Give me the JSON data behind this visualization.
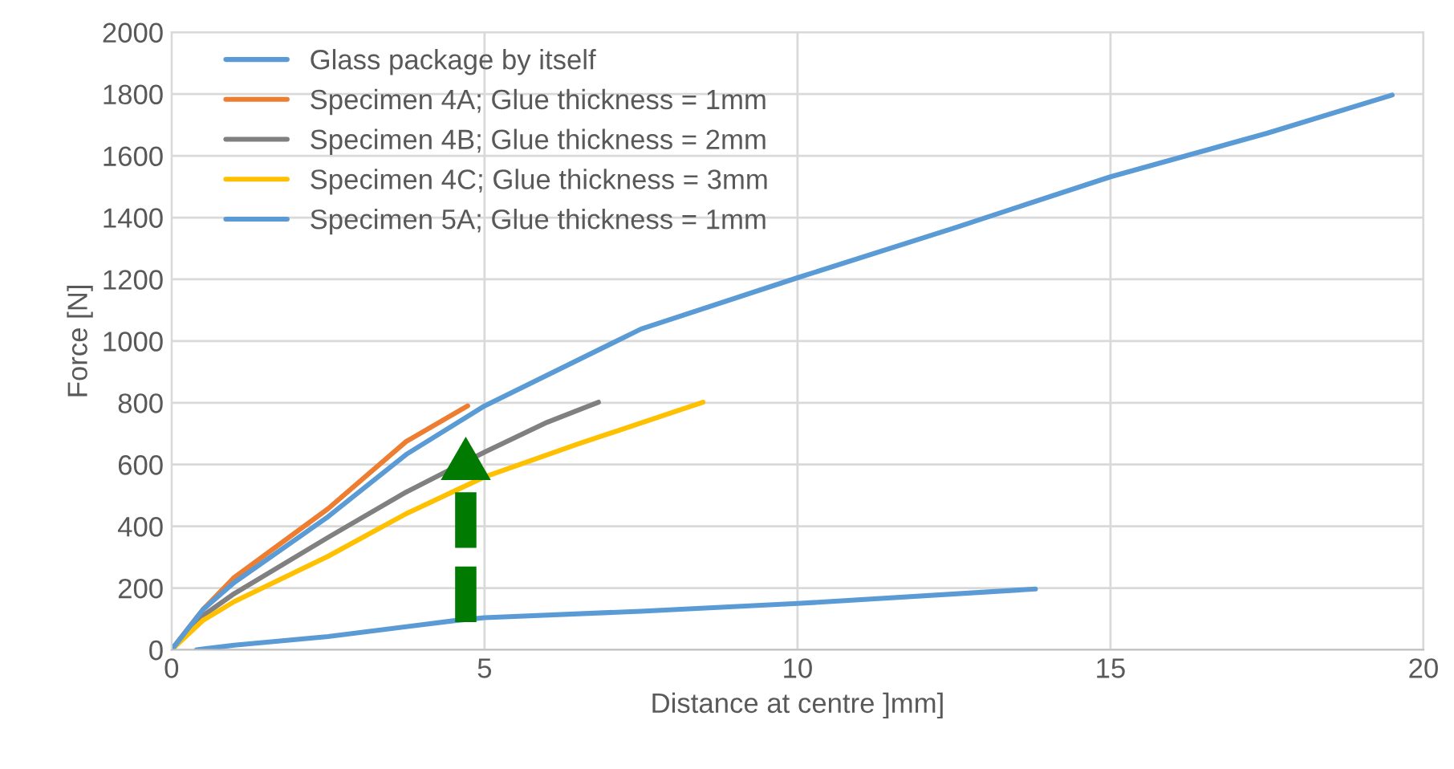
{
  "chart_data": {
    "type": "line",
    "xlabel": "Distance at centre ]mm]",
    "ylabel": "Force [N]",
    "xlim": [
      0,
      20
    ],
    "xticks": [
      0,
      5,
      10,
      15,
      20
    ],
    "ylim": [
      0,
      2000
    ],
    "yticks": [
      0,
      200,
      400,
      600,
      800,
      1000,
      1200,
      1400,
      1600,
      1800,
      2000
    ],
    "grid": true,
    "legend": "top left",
    "marker": "none",
    "line_style": "solid",
    "series": [
      {
        "name": "Glass package by itself",
        "color": "#5b9bd5",
        "x": [
          0.4,
          1,
          2.5,
          4.5,
          5,
          7.5,
          10,
          13.8
        ],
        "values": [
          0,
          15,
          43,
          94,
          104,
          125,
          150,
          197
        ]
      },
      {
        "name": "Specimen 4A; Glue thickness = 1mm",
        "color": "#ed7d31",
        "x": [
          0,
          0.5,
          1,
          2.5,
          3.75,
          4.73
        ],
        "values": [
          0,
          130,
          234,
          457,
          675,
          790
        ]
      },
      {
        "name": "Specimen 4B; Glue thickness = 2mm",
        "color": "#808080",
        "x": [
          0,
          0.5,
          1,
          2.5,
          3.75,
          5,
          6,
          6.82
        ],
        "values": [
          0,
          110,
          182,
          364,
          511,
          640,
          737,
          802
        ]
      },
      {
        "name": "Specimen 4C; Glue thickness = 3mm",
        "color": "#ffc000",
        "x": [
          0,
          0.5,
          1,
          2.5,
          3.75,
          5,
          6.5,
          8.49
        ],
        "values": [
          0,
          95,
          156,
          303,
          441,
          560,
          667,
          802
        ]
      },
      {
        "name": "Specimen 5A; Glue thickness = 1mm",
        "color": "#5b9bd5",
        "x": [
          0,
          0.5,
          1,
          2.5,
          3.75,
          5,
          7.5,
          10,
          12.5,
          15,
          17.5,
          19.5
        ],
        "values": [
          0,
          130,
          218,
          431,
          633,
          790,
          1039,
          1205,
          1366,
          1532,
          1673,
          1797
        ]
      }
    ]
  }
}
